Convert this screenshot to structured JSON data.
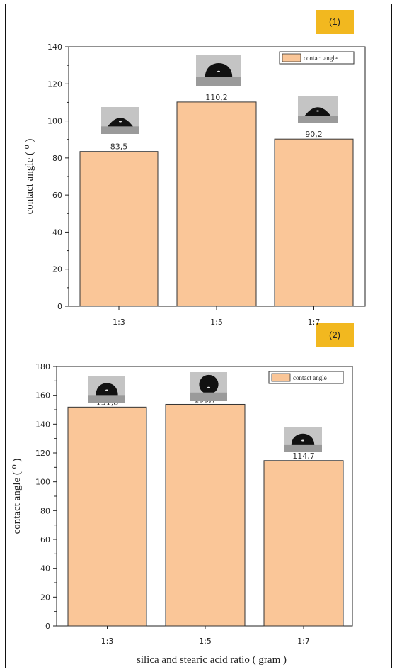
{
  "chart_data": [
    {
      "type": "bar",
      "panel_label": "(1)",
      "categories": [
        "1:3",
        "1:5",
        "1:7"
      ],
      "values": [
        83.5,
        110.2,
        90.2
      ],
      "data_labels": [
        "83,5",
        "110,2",
        "90,2"
      ],
      "legend": [
        "contact angle"
      ],
      "legend_position": "top-right",
      "ylabel": "contact angle ( ⁰ )",
      "xlabel": "",
      "ylim": [
        0,
        140
      ],
      "yticks": [
        0,
        20,
        40,
        60,
        80,
        100,
        120,
        140
      ],
      "bar_color": "#fac698",
      "grid": false
    },
    {
      "type": "bar",
      "panel_label": "(2)",
      "categories": [
        "1:3",
        "1:5",
        "1:7"
      ],
      "values": [
        151.8,
        153.7,
        114.7
      ],
      "data_labels": [
        "151,8",
        "153,7",
        "114,7"
      ],
      "legend": [
        "contact angle"
      ],
      "legend_position": "top-right",
      "ylabel": "contact angle ( ⁰ )",
      "xlabel": "silica and stearic acid ratio ( gram )",
      "ylim": [
        0,
        180
      ],
      "yticks": [
        0,
        20,
        40,
        60,
        80,
        100,
        120,
        140,
        160,
        180
      ],
      "bar_color": "#fac698",
      "grid": false
    }
  ],
  "colors": {
    "bar_fill": "#fac698",
    "badge": "#f2b81f"
  }
}
